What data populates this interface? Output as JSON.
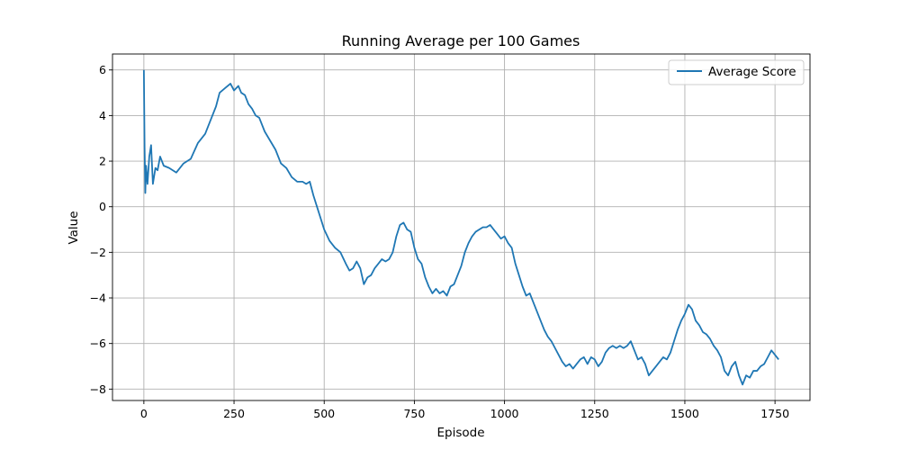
{
  "chart_data": {
    "type": "line",
    "title": "Running Average per 100 Games",
    "xlabel": "Episode",
    "ylabel": "Value",
    "xlim": [
      -87,
      1847
    ],
    "ylim": [
      -8.5,
      6.7
    ],
    "xticks": [
      0,
      250,
      500,
      750,
      1000,
      1250,
      1500,
      1750
    ],
    "yticks": [
      6,
      4,
      2,
      0,
      -2,
      -4,
      -6,
      -8
    ],
    "grid": true,
    "legend": {
      "position": "top-right"
    },
    "colors": {
      "series": "#1f77b4",
      "grid": "#b0b0b0"
    },
    "series": [
      {
        "name": "Average Score",
        "x": [
          0,
          2,
          4,
          6,
          10,
          15,
          20,
          25,
          32,
          38,
          45,
          55,
          70,
          90,
          110,
          130,
          150,
          170,
          185,
          200,
          210,
          225,
          240,
          250,
          262,
          270,
          280,
          290,
          300,
          310,
          320,
          335,
          350,
          365,
          380,
          395,
          410,
          425,
          440,
          450,
          460,
          470,
          480,
          490,
          500,
          515,
          530,
          545,
          560,
          570,
          580,
          590,
          600,
          610,
          620,
          630,
          640,
          650,
          660,
          670,
          680,
          690,
          700,
          710,
          720,
          730,
          740,
          750,
          760,
          770,
          780,
          790,
          800,
          810,
          820,
          830,
          840,
          850,
          860,
          870,
          880,
          890,
          900,
          910,
          920,
          930,
          940,
          950,
          960,
          970,
          980,
          990,
          1000,
          1010,
          1020,
          1030,
          1040,
          1050,
          1060,
          1070,
          1080,
          1090,
          1100,
          1110,
          1120,
          1130,
          1140,
          1150,
          1160,
          1170,
          1180,
          1190,
          1200,
          1210,
          1220,
          1230,
          1240,
          1250,
          1260,
          1270,
          1280,
          1290,
          1300,
          1310,
          1320,
          1330,
          1340,
          1350,
          1360,
          1370,
          1380,
          1390,
          1400,
          1410,
          1420,
          1430,
          1440,
          1450,
          1460,
          1470,
          1480,
          1490,
          1500,
          1510,
          1520,
          1530,
          1540,
          1550,
          1560,
          1570,
          1580,
          1590,
          1600,
          1610,
          1620,
          1630,
          1640,
          1650,
          1660,
          1670,
          1680,
          1690,
          1700,
          1710,
          1720,
          1730,
          1740,
          1750,
          1760
        ],
        "values": [
          6.0,
          2.6,
          0.6,
          1.8,
          1.0,
          2.2,
          2.7,
          1.0,
          1.7,
          1.6,
          2.2,
          1.8,
          1.7,
          1.5,
          1.9,
          2.1,
          2.8,
          3.2,
          3.8,
          4.4,
          5.0,
          5.2,
          5.4,
          5.1,
          5.3,
          5.0,
          4.9,
          4.5,
          4.3,
          4.0,
          3.9,
          3.3,
          2.9,
          2.5,
          1.9,
          1.7,
          1.3,
          1.1,
          1.1,
          1.0,
          1.1,
          0.5,
          0.0,
          -0.5,
          -1.0,
          -1.5,
          -1.8,
          -2.0,
          -2.5,
          -2.8,
          -2.7,
          -2.4,
          -2.7,
          -3.4,
          -3.1,
          -3.0,
          -2.7,
          -2.5,
          -2.3,
          -2.4,
          -2.3,
          -2.0,
          -1.3,
          -0.8,
          -0.7,
          -1.0,
          -1.1,
          -1.8,
          -2.3,
          -2.5,
          -3.1,
          -3.5,
          -3.8,
          -3.6,
          -3.8,
          -3.7,
          -3.9,
          -3.5,
          -3.4,
          -3.0,
          -2.6,
          -2.0,
          -1.6,
          -1.3,
          -1.1,
          -1.0,
          -0.9,
          -0.9,
          -0.8,
          -1.0,
          -1.2,
          -1.4,
          -1.3,
          -1.6,
          -1.8,
          -2.5,
          -3.0,
          -3.5,
          -3.9,
          -3.8,
          -4.2,
          -4.6,
          -5.0,
          -5.4,
          -5.7,
          -5.9,
          -6.2,
          -6.5,
          -6.8,
          -7.0,
          -6.9,
          -7.1,
          -6.9,
          -6.7,
          -6.6,
          -6.9,
          -6.6,
          -6.7,
          -7.0,
          -6.8,
          -6.4,
          -6.2,
          -6.1,
          -6.2,
          -6.1,
          -6.2,
          -6.1,
          -5.9,
          -6.3,
          -6.7,
          -6.6,
          -6.9,
          -7.4,
          -7.2,
          -7.0,
          -6.8,
          -6.6,
          -6.7,
          -6.4,
          -5.9,
          -5.4,
          -5.0,
          -4.7,
          -4.3,
          -4.5,
          -5.0,
          -5.2,
          -5.5,
          -5.6,
          -5.8,
          -6.1,
          -6.3,
          -6.6,
          -7.2,
          -7.4,
          -7.0,
          -6.8,
          -7.4,
          -7.8,
          -7.4,
          -7.5,
          -7.2,
          -7.2,
          -7.0,
          -6.9,
          -6.6,
          -6.3,
          -6.5,
          -6.7
        ]
      }
    ]
  }
}
